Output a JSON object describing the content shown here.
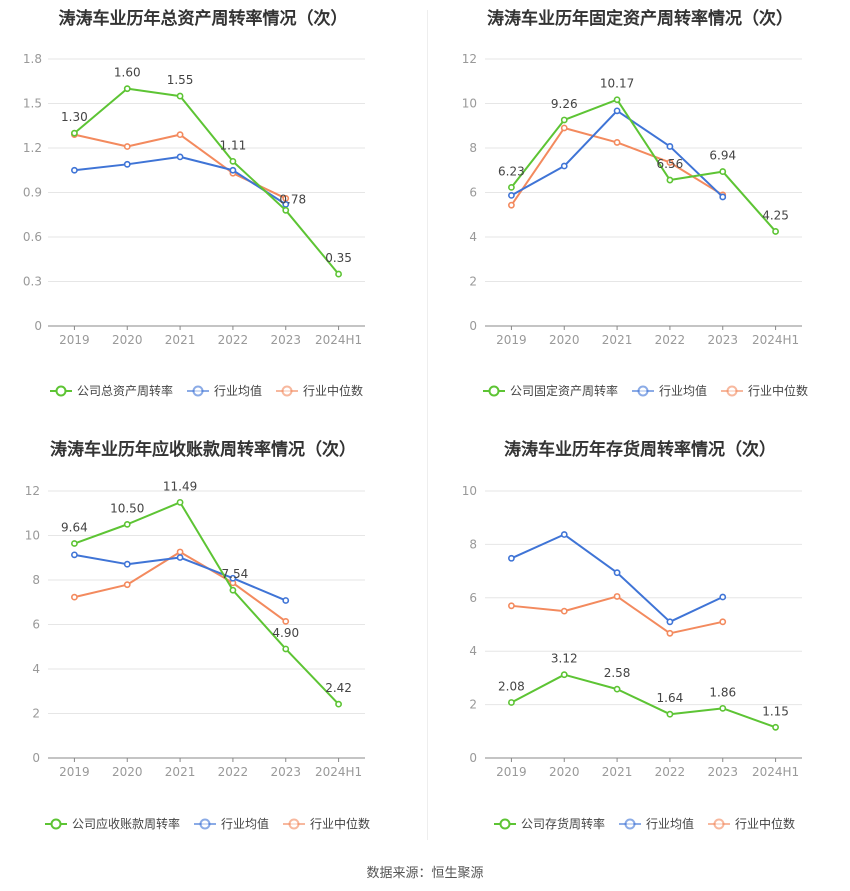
{
  "colors": {
    "company": "#5dc434",
    "industry_avg": "#3f74d6",
    "industry_median": "#f38a5e",
    "grid": "#e6e6e6",
    "axis": "#999999",
    "text": "#444444",
    "title": "#333333"
  },
  "legend": {
    "avg": "行业均值",
    "median": "行业中位数"
  },
  "source": "数据来源：恒生聚源",
  "chart_data": [
    {
      "type": "line",
      "title": "涛涛车业历年总资产周转率情况（次）",
      "categories": [
        "2019",
        "2020",
        "2021",
        "2022",
        "2023",
        "2024H1"
      ],
      "ylim": [
        0,
        1.8
      ],
      "yticks": [
        "0",
        "0.3",
        "0.6",
        "0.9",
        "1.2",
        "1.5",
        "1.8"
      ],
      "grid": true,
      "legend_position": "bottom",
      "series": [
        {
          "name": "公司总资产周转率",
          "role": "company",
          "values": [
            1.3,
            1.6,
            1.55,
            1.11,
            0.78,
            0.35
          ],
          "labels": [
            "1.30",
            "1.60",
            "1.55",
            "1.11",
            "0.78",
            "0.35"
          ]
        },
        {
          "name": "行业均值",
          "role": "avg",
          "values": [
            1.05,
            1.09,
            1.14,
            1.05,
            0.82,
            null
          ]
        },
        {
          "name": "行业中位数",
          "role": "median",
          "values": [
            1.29,
            1.21,
            1.29,
            1.03,
            0.86,
            null
          ]
        }
      ]
    },
    {
      "type": "line",
      "title": "涛涛车业历年固定资产周转率情况（次）",
      "categories": [
        "2019",
        "2020",
        "2021",
        "2022",
        "2023",
        "2024H1"
      ],
      "ylim": [
        0,
        12
      ],
      "yticks": [
        "0",
        "2",
        "4",
        "6",
        "8",
        "10",
        "12"
      ],
      "grid": true,
      "legend_position": "bottom",
      "series": [
        {
          "name": "公司固定资产周转率",
          "role": "company",
          "values": [
            6.23,
            9.26,
            10.17,
            6.56,
            6.94,
            4.25
          ],
          "labels": [
            "6.23",
            "9.26",
            "10.17",
            "6.56",
            "6.94",
            "4.25"
          ]
        },
        {
          "name": "行业均值",
          "role": "avg",
          "values": [
            5.87,
            7.19,
            9.67,
            8.07,
            5.8,
            null
          ]
        },
        {
          "name": "行业中位数",
          "role": "median",
          "values": [
            5.43,
            8.9,
            8.25,
            7.35,
            5.89,
            null
          ]
        }
      ]
    },
    {
      "type": "line",
      "title": "涛涛车业历年应收账款周转率情况（次）",
      "categories": [
        "2019",
        "2020",
        "2021",
        "2022",
        "2023",
        "2024H1"
      ],
      "ylim": [
        0,
        12
      ],
      "yticks": [
        "0",
        "2",
        "4",
        "6",
        "8",
        "10",
        "12"
      ],
      "grid": true,
      "legend_position": "bottom",
      "series": [
        {
          "name": "公司应收账款周转率",
          "role": "company",
          "values": [
            9.64,
            10.5,
            11.49,
            7.54,
            4.9,
            2.42
          ],
          "labels": [
            "9.64",
            "10.50",
            "11.49",
            "7.54",
            "4.90",
            "2.42"
          ]
        },
        {
          "name": "行业均值",
          "role": "avg",
          "values": [
            9.13,
            8.71,
            9.01,
            8.08,
            7.08,
            null
          ]
        },
        {
          "name": "行业中位数",
          "role": "median",
          "values": [
            7.23,
            7.79,
            9.26,
            7.87,
            6.14,
            null
          ]
        }
      ]
    },
    {
      "type": "line",
      "title": "涛涛车业历年存货周转率情况（次）",
      "categories": [
        "2019",
        "2020",
        "2021",
        "2022",
        "2023",
        "2024H1"
      ],
      "ylim": [
        0,
        10
      ],
      "yticks": [
        "0",
        "2",
        "4",
        "6",
        "8",
        "10"
      ],
      "grid": true,
      "legend_position": "bottom",
      "series": [
        {
          "name": "公司存货周转率",
          "role": "company",
          "values": [
            2.08,
            3.12,
            2.58,
            1.64,
            1.86,
            1.15
          ],
          "labels": [
            "2.08",
            "3.12",
            "2.58",
            "1.64",
            "1.86",
            "1.15"
          ]
        },
        {
          "name": "行业均值",
          "role": "avg",
          "values": [
            7.48,
            8.37,
            6.94,
            5.1,
            6.03,
            null
          ]
        },
        {
          "name": "行业中位数",
          "role": "median",
          "values": [
            5.7,
            5.5,
            6.05,
            4.67,
            5.1,
            null
          ]
        }
      ]
    }
  ]
}
